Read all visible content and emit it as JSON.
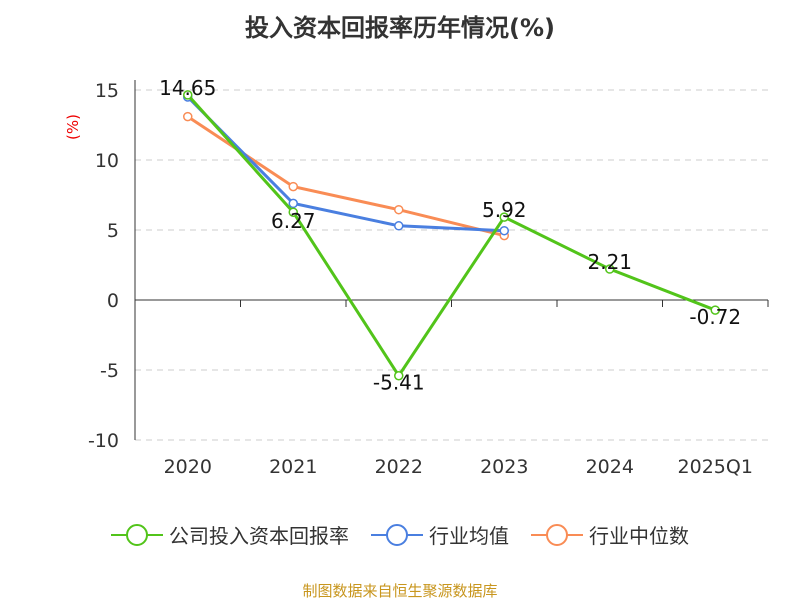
{
  "chart_data": {
    "type": "line",
    "title": "投入资本回报率历年情况(%)",
    "ylabel": "(%)",
    "xlabel": "",
    "categories": [
      "2020",
      "2021",
      "2022",
      "2023",
      "2024",
      "2025Q1"
    ],
    "ylim": [
      -10,
      15
    ],
    "yticks": [
      15,
      10,
      5,
      0,
      -5,
      -10
    ],
    "grid": true,
    "legend_position": "bottom",
    "series": [
      {
        "name": "公司投入资本回报率",
        "color": "#52c41a",
        "values": [
          14.65,
          6.27,
          -5.41,
          5.92,
          2.21,
          -0.72
        ],
        "labels": [
          "14.65",
          "6.27",
          "-5.41",
          "5.92",
          "2.21",
          "-0.72"
        ]
      },
      {
        "name": "行业均值",
        "color": "#4a7fe0",
        "values": [
          14.5,
          6.9,
          5.3,
          4.95,
          null,
          null
        ]
      },
      {
        "name": "行业中位数",
        "color": "#f98c55",
        "values": [
          13.1,
          8.1,
          6.45,
          4.6,
          null,
          null
        ]
      }
    ]
  },
  "source": "制图数据来自恒生聚源数据库"
}
